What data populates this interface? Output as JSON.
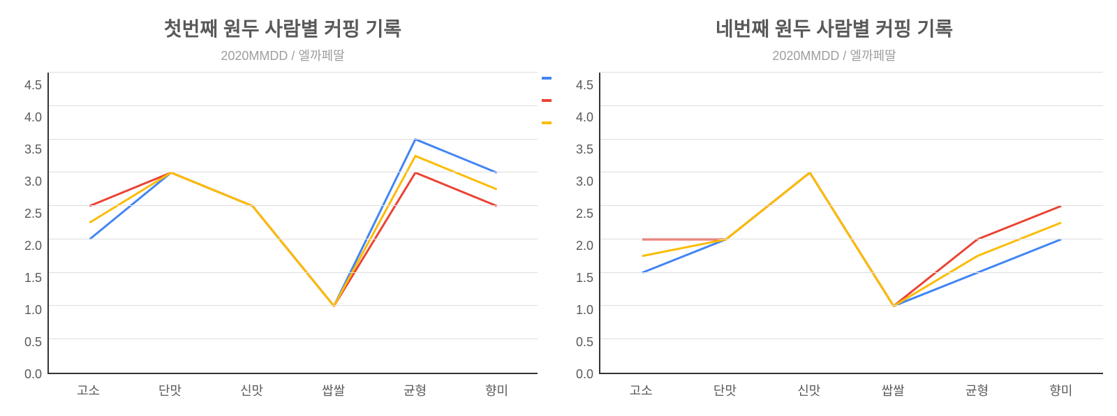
{
  "charts": [
    {
      "title": "첫번째 원두 사람별 커핑 기록",
      "subtitle": "2020MMDD / 엘까페딸",
      "type": "line",
      "categories": [
        "고소",
        "단맛",
        "신맛",
        "쌉쌀",
        "균형",
        "향미"
      ],
      "ylim": [
        0.0,
        4.5
      ],
      "ytick_step": 0.5,
      "yticks": [
        "0.0",
        "0.5",
        "1.0",
        "1.5",
        "2.0",
        "2.5",
        "3.0",
        "3.5",
        "4.0",
        "4.5"
      ],
      "series": [
        {
          "color": "#4285f4",
          "values": [
            2.0,
            3.0,
            2.5,
            1.0,
            3.5,
            3.0
          ]
        },
        {
          "color": "#ea4335",
          "values": [
            2.5,
            3.0,
            2.5,
            1.0,
            3.0,
            2.5
          ]
        },
        {
          "color": "#fbbc04",
          "values": [
            2.25,
            3.0,
            2.5,
            1.0,
            3.25,
            2.75
          ]
        }
      ],
      "line_width": 3,
      "show_legend_swatches": true,
      "title_fontsize": 28,
      "subtitle_fontsize": 18,
      "tick_fontsize": 18,
      "title_color": "#595959",
      "subtitle_color": "#9e9e9e",
      "tick_color": "#595959",
      "axis_color": "#333333",
      "grid_color": "#dddddd",
      "background_color": "#ffffff"
    },
    {
      "title": "네번째 원두 사람별 커핑 기록",
      "subtitle": "2020MMDD / 엘까페딸",
      "type": "line",
      "categories": [
        "고소",
        "단맛",
        "신맛",
        "쌉쌀",
        "균형",
        "향미"
      ],
      "ylim": [
        0.0,
        4.5
      ],
      "ytick_step": 0.5,
      "yticks": [
        "0.0",
        "0.5",
        "1.0",
        "1.5",
        "2.0",
        "2.5",
        "3.0",
        "3.5",
        "4.0",
        "4.5"
      ],
      "series": [
        {
          "color": "#4285f4",
          "values": [
            1.5,
            2.0,
            3.0,
            1.0,
            1.5,
            2.0
          ]
        },
        {
          "color": "#ea4335",
          "values": [
            2.0,
            2.0,
            3.0,
            1.0,
            2.0,
            2.5
          ]
        },
        {
          "color": "#fbbc04",
          "values": [
            1.75,
            2.0,
            3.0,
            1.0,
            1.75,
            2.25
          ]
        }
      ],
      "line_width": 3,
      "show_legend_swatches": false,
      "title_fontsize": 28,
      "subtitle_fontsize": 18,
      "tick_fontsize": 18,
      "title_color": "#595959",
      "subtitle_color": "#9e9e9e",
      "tick_color": "#595959",
      "axis_color": "#333333",
      "grid_color": "#dddddd",
      "background_color": "#ffffff"
    }
  ]
}
